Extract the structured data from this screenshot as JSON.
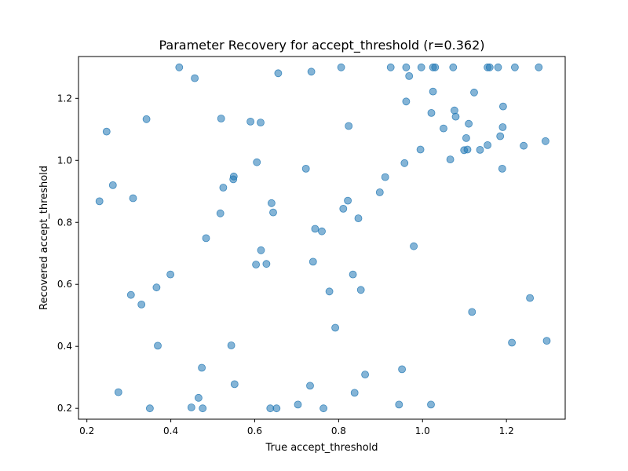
{
  "chart_data": {
    "type": "scatter",
    "title": "Parameter Recovery for accept_threshold (r=0.362)",
    "xlabel": "True accept_threshold",
    "ylabel": "Recovered accept_threshold",
    "xlim": [
      0.18,
      1.34
    ],
    "ylim": [
      0.165,
      1.335
    ],
    "xticks": [
      0.2,
      0.4,
      0.6,
      0.8,
      1.0,
      1.2
    ],
    "yticks": [
      0.2,
      0.4,
      0.6,
      0.8,
      1.0,
      1.2
    ],
    "xtick_labels": [
      "0.2",
      "0.4",
      "0.6",
      "0.8",
      "1.0",
      "1.2"
    ],
    "ytick_labels": [
      "0.2",
      "0.4",
      "0.6",
      "0.8",
      "1.0",
      "1.2"
    ],
    "grid": false,
    "marker_color": "#1f77b4",
    "marker_alpha": 0.55,
    "points": [
      [
        0.42,
        1.3
      ],
      [
        0.457,
        1.265
      ],
      [
        0.656,
        1.281
      ],
      [
        0.735,
        1.286
      ],
      [
        0.806,
        1.3
      ],
      [
        0.924,
        1.3
      ],
      [
        0.961,
        1.3
      ],
      [
        0.997,
        1.3
      ],
      [
        1.025,
        1.3
      ],
      [
        1.03,
        1.3
      ],
      [
        1.073,
        1.3
      ],
      [
        1.155,
        1.3
      ],
      [
        1.16,
        1.3
      ],
      [
        1.18,
        1.3
      ],
      [
        1.22,
        1.3
      ],
      [
        1.277,
        1.3
      ],
      [
        0.968,
        1.272
      ],
      [
        0.961,
        1.19
      ],
      [
        1.025,
        1.222
      ],
      [
        1.123,
        1.219
      ],
      [
        1.021,
        1.153
      ],
      [
        1.076,
        1.161
      ],
      [
        1.079,
        1.141
      ],
      [
        1.192,
        1.174
      ],
      [
        1.11,
        1.118
      ],
      [
        1.05,
        1.103
      ],
      [
        1.191,
        1.107
      ],
      [
        1.104,
        1.072
      ],
      [
        1.185,
        1.078
      ],
      [
        1.293,
        1.062
      ],
      [
        0.995,
        1.035
      ],
      [
        1.099,
        1.033
      ],
      [
        1.107,
        1.035
      ],
      [
        1.137,
        1.034
      ],
      [
        1.155,
        1.049
      ],
      [
        1.241,
        1.047
      ],
      [
        1.066,
        1.003
      ],
      [
        0.957,
        0.991
      ],
      [
        1.19,
        0.973
      ],
      [
        0.247,
        1.093
      ],
      [
        0.342,
        1.133
      ],
      [
        0.52,
        1.135
      ],
      [
        0.59,
        1.125
      ],
      [
        0.614,
        1.122
      ],
      [
        0.824,
        1.111
      ],
      [
        0.605,
        0.994
      ],
      [
        0.722,
        0.973
      ],
      [
        0.23,
        0.868
      ],
      [
        0.262,
        0.92
      ],
      [
        0.31,
        0.878
      ],
      [
        0.55,
        0.948
      ],
      [
        0.549,
        0.939
      ],
      [
        0.525,
        0.912
      ],
      [
        0.518,
        0.829
      ],
      [
        0.64,
        0.862
      ],
      [
        0.644,
        0.832
      ],
      [
        0.911,
        0.946
      ],
      [
        0.898,
        0.897
      ],
      [
        0.822,
        0.87
      ],
      [
        0.811,
        0.844
      ],
      [
        0.847,
        0.813
      ],
      [
        0.744,
        0.779
      ],
      [
        0.76,
        0.771
      ],
      [
        0.484,
        0.749
      ],
      [
        0.615,
        0.71
      ],
      [
        0.979,
        0.723
      ],
      [
        0.603,
        0.664
      ],
      [
        0.628,
        0.666
      ],
      [
        0.739,
        0.673
      ],
      [
        0.399,
        0.632
      ],
      [
        0.834,
        0.632
      ],
      [
        0.366,
        0.59
      ],
      [
        0.305,
        0.566
      ],
      [
        0.33,
        0.535
      ],
      [
        0.778,
        0.577
      ],
      [
        0.853,
        0.582
      ],
      [
        1.256,
        0.556
      ],
      [
        1.118,
        0.511
      ],
      [
        0.792,
        0.46
      ],
      [
        0.369,
        0.402
      ],
      [
        0.544,
        0.403
      ],
      [
        1.213,
        0.412
      ],
      [
        1.296,
        0.418
      ],
      [
        0.474,
        0.331
      ],
      [
        0.552,
        0.278
      ],
      [
        0.863,
        0.309
      ],
      [
        0.951,
        0.326
      ],
      [
        0.275,
        0.252
      ],
      [
        0.732,
        0.273
      ],
      [
        0.838,
        0.25
      ],
      [
        0.466,
        0.234
      ],
      [
        0.35,
        0.2
      ],
      [
        0.449,
        0.203
      ],
      [
        0.476,
        0.2
      ],
      [
        0.637,
        0.2
      ],
      [
        0.652,
        0.2
      ],
      [
        0.703,
        0.212
      ],
      [
        0.764,
        0.2
      ],
      [
        0.944,
        0.212
      ],
      [
        1.02,
        0.212
      ]
    ]
  }
}
